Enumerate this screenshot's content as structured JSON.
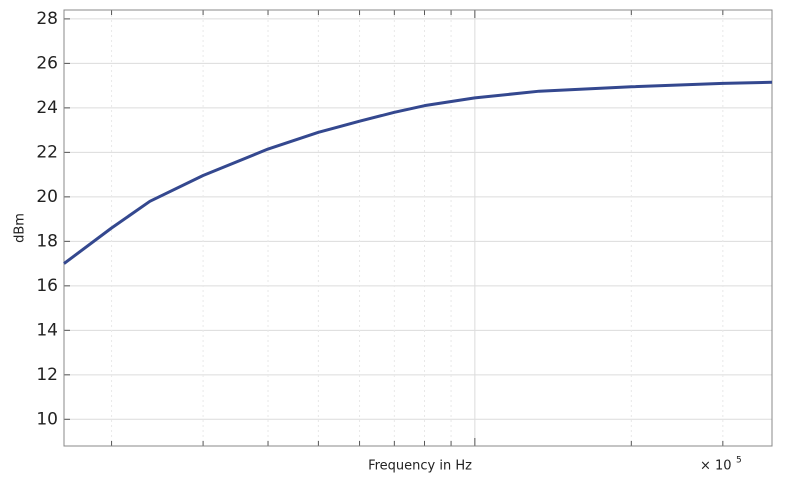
{
  "chart_data": {
    "type": "line",
    "x_label": "Frequency in Hz",
    "y_label": "dBm",
    "x_scale_label": "× 10",
    "x_scale_exponent": "5",
    "x": [
      16200,
      20000,
      23700,
      30000,
      40000,
      50000,
      60000,
      70000,
      80000,
      100000,
      133000,
      200000,
      300000,
      373000
    ],
    "series": [
      {
        "color": "#34488f",
        "values": [
          17.0,
          18.6,
          19.8,
          20.96,
          22.15,
          22.9,
          23.4,
          23.8,
          24.1,
          24.45,
          24.75,
          24.95,
          25.1,
          25.15
        ]
      }
    ],
    "xlog": true,
    "xlim": [
      16200,
      373000
    ],
    "xticks": [
      {
        "value": 20000,
        "label": null
      },
      {
        "value": 30000,
        "label": null
      },
      {
        "value": 40000,
        "label": null
      },
      {
        "value": 50000,
        "label": null
      },
      {
        "value": 60000,
        "label": null
      },
      {
        "value": 70000,
        "label": null
      },
      {
        "value": 80000,
        "label": null
      },
      {
        "value": 90000,
        "label": null
      },
      {
        "value": 100000,
        "label": null
      },
      {
        "value": 200000,
        "label": null
      },
      {
        "value": 300000,
        "label": null
      }
    ],
    "ylim": [
      8.8,
      28.4
    ],
    "yticks": [
      10,
      12,
      14,
      16,
      18,
      20,
      22,
      24,
      26,
      28
    ],
    "grid": true
  }
}
